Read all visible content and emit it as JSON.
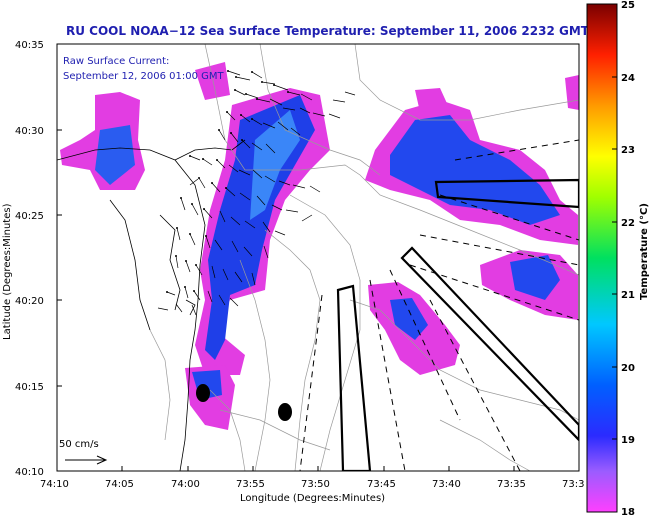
{
  "title": "RU COOL  NOAA−12  Sea Surface Temperature:  September 11, 2006 2232 GMT",
  "legend": {
    "line1": "Raw Surface Current:",
    "line2": "September 12, 2006 01:00 GMT"
  },
  "scale_label": "50 cm/s",
  "axes": {
    "xlabel": "Longitude (Degrees:Minutes)",
    "ylabel": "Latitude (Degrees:Minutes)",
    "xticks": [
      "74:10",
      "74:05",
      "74:00",
      "73:55",
      "73:50",
      "73:45",
      "73:40",
      "73:35",
      "73:3"
    ],
    "yticks": [
      "40:35",
      "40:30",
      "40:25",
      "40:20",
      "40:15",
      "40:10"
    ]
  },
  "colorbar": {
    "label": "Temperature (°C)",
    "min": 18,
    "max": 25,
    "ticks": [
      "25",
      "24",
      "23",
      "22",
      "21",
      "20",
      "19",
      "18"
    ]
  },
  "colors": {
    "title": "#1f1fb0",
    "land": "#ffffff",
    "cold_patch": "#2020e8",
    "magenta_patch": "#e23de2"
  }
}
